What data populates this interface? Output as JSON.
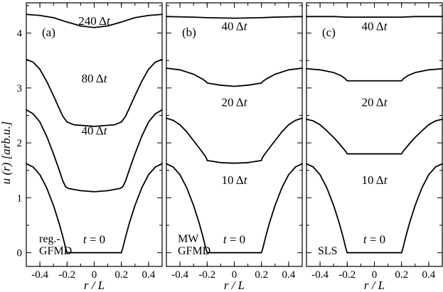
{
  "chart_data": {
    "type": "line",
    "xlabel": "r / L",
    "ylabel": "u (r) [arb.u.]",
    "xlim": [
      -0.5,
      0.5
    ],
    "ylim": [
      -0.25,
      4.55
    ],
    "xticks": [
      -0.4,
      -0.2,
      0,
      0.2,
      0.4
    ],
    "xtick_labels": [
      "-0.4",
      "-0.2",
      "0",
      "0.2",
      "0.4"
    ],
    "yticks": [
      0,
      1,
      2,
      3,
      4
    ],
    "ytick_labels": [
      "0",
      "1",
      "2",
      "3",
      "4"
    ],
    "panels": [
      {
        "label": "(a)",
        "method": [
          "reg.-",
          "GFMD"
        ],
        "series": [
          {
            "label": "t = 0",
            "points": [
              [
                -0.5,
                1.62
              ],
              [
                -0.45,
                1.56
              ],
              [
                -0.4,
                1.42
              ],
              [
                -0.35,
                1.18
              ],
              [
                -0.3,
                0.86
              ],
              [
                -0.26,
                0.55
              ],
              [
                -0.23,
                0.28
              ],
              [
                -0.21,
                0.08
              ],
              [
                -0.2,
                0.0
              ],
              [
                0.0,
                0.0
              ],
              [
                0.2,
                0.0
              ],
              [
                0.21,
                0.08
              ],
              [
                0.23,
                0.28
              ],
              [
                0.26,
                0.55
              ],
              [
                0.3,
                0.86
              ],
              [
                0.35,
                1.18
              ],
              [
                0.4,
                1.42
              ],
              [
                0.45,
                1.56
              ],
              [
                0.5,
                1.62
              ]
            ]
          },
          {
            "label": "40 Δt",
            "points": [
              [
                -0.5,
                2.6
              ],
              [
                -0.45,
                2.53
              ],
              [
                -0.4,
                2.38
              ],
              [
                -0.35,
                2.12
              ],
              [
                -0.3,
                1.8
              ],
              [
                -0.26,
                1.52
              ],
              [
                -0.23,
                1.3
              ],
              [
                -0.21,
                1.2
              ],
              [
                -0.19,
                1.17
              ],
              [
                -0.1,
                1.13
              ],
              [
                0.0,
                1.11
              ],
              [
                0.1,
                1.13
              ],
              [
                0.19,
                1.17
              ],
              [
                0.21,
                1.2
              ],
              [
                0.23,
                1.3
              ],
              [
                0.26,
                1.52
              ],
              [
                0.3,
                1.8
              ],
              [
                0.35,
                2.12
              ],
              [
                0.4,
                2.38
              ],
              [
                0.45,
                2.53
              ],
              [
                0.5,
                2.6
              ]
            ]
          },
          {
            "label": "80 Δt",
            "points": [
              [
                -0.5,
                3.52
              ],
              [
                -0.45,
                3.47
              ],
              [
                -0.4,
                3.34
              ],
              [
                -0.35,
                3.12
              ],
              [
                -0.3,
                2.86
              ],
              [
                -0.26,
                2.64
              ],
              [
                -0.23,
                2.48
              ],
              [
                -0.2,
                2.38
              ],
              [
                -0.15,
                2.33
              ],
              [
                0.0,
                2.3
              ],
              [
                0.15,
                2.33
              ],
              [
                0.2,
                2.38
              ],
              [
                0.23,
                2.48
              ],
              [
                0.26,
                2.64
              ],
              [
                0.3,
                2.86
              ],
              [
                0.35,
                3.12
              ],
              [
                0.4,
                3.34
              ],
              [
                0.45,
                3.47
              ],
              [
                0.5,
                3.52
              ]
            ]
          },
          {
            "label": "240 Δt",
            "points": [
              [
                -0.5,
                4.34
              ],
              [
                -0.4,
                4.32
              ],
              [
                -0.3,
                4.28
              ],
              [
                -0.2,
                4.2
              ],
              [
                -0.1,
                4.13
              ],
              [
                0.0,
                4.1
              ],
              [
                0.1,
                4.13
              ],
              [
                0.2,
                4.2
              ],
              [
                0.3,
                4.28
              ],
              [
                0.4,
                4.32
              ],
              [
                0.5,
                4.34
              ]
            ]
          }
        ]
      },
      {
        "label": "(b)",
        "method": [
          "MW",
          "GFMD"
        ],
        "series": [
          {
            "label": "t = 0",
            "points": [
              [
                -0.5,
                1.62
              ],
              [
                -0.45,
                1.56
              ],
              [
                -0.4,
                1.42
              ],
              [
                -0.35,
                1.18
              ],
              [
                -0.3,
                0.86
              ],
              [
                -0.26,
                0.55
              ],
              [
                -0.23,
                0.28
              ],
              [
                -0.21,
                0.08
              ],
              [
                -0.2,
                0.0
              ],
              [
                0.0,
                0.0
              ],
              [
                0.2,
                0.0
              ],
              [
                0.21,
                0.08
              ],
              [
                0.23,
                0.28
              ],
              [
                0.26,
                0.55
              ],
              [
                0.3,
                0.86
              ],
              [
                0.35,
                1.18
              ],
              [
                0.4,
                1.42
              ],
              [
                0.45,
                1.56
              ],
              [
                0.5,
                1.62
              ]
            ]
          },
          {
            "label": "10 Δt",
            "points": [
              [
                -0.5,
                2.45
              ],
              [
                -0.45,
                2.41
              ],
              [
                -0.4,
                2.33
              ],
              [
                -0.35,
                2.2
              ],
              [
                -0.3,
                2.04
              ],
              [
                -0.25,
                1.88
              ],
              [
                -0.22,
                1.78
              ],
              [
                -0.205,
                1.72
              ],
              [
                -0.2,
                1.68
              ],
              [
                -0.1,
                1.64
              ],
              [
                0.0,
                1.63
              ],
              [
                0.1,
                1.64
              ],
              [
                0.2,
                1.68
              ],
              [
                0.205,
                1.72
              ],
              [
                0.22,
                1.78
              ],
              [
                0.25,
                1.88
              ],
              [
                0.3,
                2.04
              ],
              [
                0.35,
                2.2
              ],
              [
                0.4,
                2.33
              ],
              [
                0.45,
                2.41
              ],
              [
                0.5,
                2.45
              ]
            ]
          },
          {
            "label": "20 Δt",
            "points": [
              [
                -0.5,
                3.36
              ],
              [
                -0.4,
                3.33
              ],
              [
                -0.3,
                3.25
              ],
              [
                -0.24,
                3.17
              ],
              [
                -0.21,
                3.12
              ],
              [
                -0.2,
                3.09
              ],
              [
                -0.1,
                3.05
              ],
              [
                0.0,
                3.03
              ],
              [
                0.1,
                3.05
              ],
              [
                0.2,
                3.09
              ],
              [
                0.21,
                3.12
              ],
              [
                0.24,
                3.17
              ],
              [
                0.3,
                3.25
              ],
              [
                0.4,
                3.33
              ],
              [
                0.5,
                3.36
              ]
            ]
          },
          {
            "label": "40 Δt",
            "points": [
              [
                -0.5,
                4.3
              ],
              [
                -0.3,
                4.29
              ],
              [
                -0.2,
                4.28
              ],
              [
                0.0,
                4.27
              ],
              [
                0.2,
                4.28
              ],
              [
                0.3,
                4.29
              ],
              [
                0.5,
                4.3
              ]
            ]
          }
        ]
      },
      {
        "label": "(c)",
        "method": [
          "SLS"
        ],
        "series": [
          {
            "label": "t = 0",
            "points": [
              [
                -0.5,
                1.62
              ],
              [
                -0.45,
                1.56
              ],
              [
                -0.4,
                1.42
              ],
              [
                -0.35,
                1.18
              ],
              [
                -0.3,
                0.86
              ],
              [
                -0.26,
                0.55
              ],
              [
                -0.23,
                0.28
              ],
              [
                -0.21,
                0.08
              ],
              [
                -0.2,
                0.0
              ],
              [
                0.0,
                0.0
              ],
              [
                0.2,
                0.0
              ],
              [
                0.21,
                0.08
              ],
              [
                0.23,
                0.28
              ],
              [
                0.26,
                0.55
              ],
              [
                0.3,
                0.86
              ],
              [
                0.35,
                1.18
              ],
              [
                0.4,
                1.42
              ],
              [
                0.45,
                1.56
              ],
              [
                0.5,
                1.62
              ]
            ]
          },
          {
            "label": "10 Δt",
            "points": [
              [
                -0.5,
                2.43
              ],
              [
                -0.45,
                2.4
              ],
              [
                -0.4,
                2.33
              ],
              [
                -0.35,
                2.22
              ],
              [
                -0.3,
                2.1
              ],
              [
                -0.26,
                1.99
              ],
              [
                -0.23,
                1.9
              ],
              [
                -0.21,
                1.84
              ],
              [
                -0.2,
                1.8
              ],
              [
                0.0,
                1.8
              ],
              [
                0.2,
                1.8
              ],
              [
                0.21,
                1.84
              ],
              [
                0.23,
                1.9
              ],
              [
                0.26,
                1.99
              ],
              [
                0.3,
                2.1
              ],
              [
                0.35,
                2.22
              ],
              [
                0.4,
                2.33
              ],
              [
                0.45,
                2.4
              ],
              [
                0.5,
                2.43
              ]
            ]
          },
          {
            "label": "20 Δt",
            "points": [
              [
                -0.5,
                3.35
              ],
              [
                -0.4,
                3.33
              ],
              [
                -0.3,
                3.28
              ],
              [
                -0.25,
                3.23
              ],
              [
                -0.22,
                3.18
              ],
              [
                -0.2,
                3.13
              ],
              [
                0.0,
                3.13
              ],
              [
                0.2,
                3.13
              ],
              [
                0.22,
                3.18
              ],
              [
                0.25,
                3.23
              ],
              [
                0.3,
                3.28
              ],
              [
                0.4,
                3.33
              ],
              [
                0.5,
                3.35
              ]
            ]
          },
          {
            "label": "40 Δt",
            "points": [
              [
                -0.5,
                4.3
              ],
              [
                -0.3,
                4.3
              ],
              [
                -0.2,
                4.29
              ],
              [
                0.0,
                4.29
              ],
              [
                0.2,
                4.29
              ],
              [
                0.3,
                4.3
              ],
              [
                0.5,
                4.3
              ]
            ]
          }
        ]
      }
    ]
  }
}
